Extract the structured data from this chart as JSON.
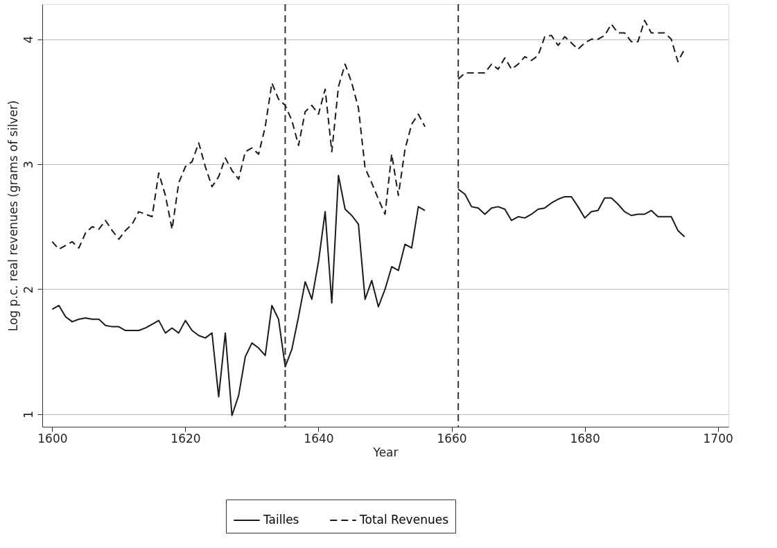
{
  "chart_data": {
    "type": "line",
    "xlabel": "Year",
    "ylabel": "Log p.c. real revenues (grams of silver)",
    "x": [
      1600,
      1601,
      1602,
      1603,
      1604,
      1605,
      1606,
      1607,
      1608,
      1609,
      1610,
      1611,
      1612,
      1613,
      1614,
      1615,
      1616,
      1617,
      1618,
      1619,
      1620,
      1621,
      1622,
      1623,
      1624,
      1625,
      1626,
      1627,
      1628,
      1629,
      1630,
      1631,
      1632,
      1633,
      1634,
      1635,
      1636,
      1637,
      1638,
      1639,
      1640,
      1641,
      1642,
      1643,
      1644,
      1645,
      1646,
      1647,
      1648,
      1649,
      1650,
      1651,
      1652,
      1653,
      1654,
      1655,
      1656,
      1657,
      1658,
      1659,
      1660,
      1661,
      1662,
      1663,
      1664,
      1665,
      1666,
      1667,
      1668,
      1669,
      1670,
      1671,
      1672,
      1673,
      1674,
      1675,
      1676,
      1677,
      1678,
      1679,
      1680,
      1681,
      1682,
      1683,
      1684,
      1685,
      1686,
      1687,
      1688,
      1689,
      1690,
      1691,
      1692,
      1693,
      1694,
      1695
    ],
    "series": [
      {
        "name": "Tailles",
        "color": "#1a1a1a",
        "line_style": "solid",
        "values": [
          1.84,
          1.87,
          1.78,
          1.74,
          1.76,
          1.77,
          1.76,
          1.76,
          1.71,
          1.7,
          1.7,
          1.67,
          1.67,
          1.67,
          1.69,
          1.72,
          1.75,
          1.65,
          1.69,
          1.65,
          1.75,
          1.67,
          1.63,
          1.61,
          1.65,
          1.14,
          1.65,
          0.99,
          1.15,
          1.46,
          1.57,
          1.53,
          1.47,
          1.87,
          1.76,
          1.38,
          1.52,
          1.78,
          2.06,
          1.92,
          2.22,
          2.62,
          1.89,
          2.91,
          2.64,
          2.59,
          2.52,
          1.92,
          2.07,
          1.86,
          2.0,
          2.18,
          2.15,
          2.36,
          2.33,
          2.66,
          2.63,
          null,
          null,
          null,
          null,
          2.8,
          2.76,
          2.66,
          2.65,
          2.6,
          2.65,
          2.66,
          2.64,
          2.55,
          2.58,
          2.57,
          2.6,
          2.64,
          2.65,
          2.69,
          2.72,
          2.74,
          2.74,
          2.66,
          2.57,
          2.62,
          2.63,
          2.73,
          2.73,
          2.68,
          2.62,
          2.59,
          2.6,
          2.6,
          2.63,
          2.58,
          2.58,
          2.58,
          2.47,
          2.42
        ]
      },
      {
        "name": "Total Revenues",
        "color": "#1a1a1a",
        "line_style": "dashed",
        "values": [
          2.38,
          2.32,
          2.35,
          2.38,
          2.33,
          2.45,
          2.5,
          2.48,
          2.55,
          2.47,
          2.4,
          2.47,
          2.52,
          2.62,
          2.6,
          2.58,
          2.93,
          2.75,
          2.48,
          2.85,
          2.98,
          3.02,
          3.17,
          2.98,
          2.82,
          2.9,
          3.05,
          2.95,
          2.88,
          3.1,
          3.13,
          3.08,
          3.3,
          3.65,
          3.52,
          3.47,
          3.35,
          3.15,
          3.42,
          3.47,
          3.4,
          3.6,
          3.1,
          3.62,
          3.8,
          3.65,
          3.45,
          2.97,
          2.85,
          2.72,
          2.6,
          3.08,
          2.75,
          3.12,
          3.32,
          3.4,
          3.3,
          null,
          null,
          null,
          null,
          3.68,
          3.73,
          3.73,
          3.73,
          3.73,
          3.8,
          3.76,
          3.85,
          3.76,
          3.8,
          3.86,
          3.83,
          3.87,
          4.02,
          4.03,
          3.95,
          4.02,
          3.97,
          3.92,
          3.97,
          4.0,
          4.0,
          4.03,
          4.12,
          4.05,
          4.05,
          3.98,
          3.98,
          4.15,
          4.05,
          4.05,
          4.05,
          4.0,
          3.82,
          3.92
        ]
      }
    ],
    "ref_lines": [
      {
        "axis": "x",
        "value": 1635,
        "label": null,
        "color": "#333333",
        "line_style": "dashed"
      },
      {
        "axis": "x",
        "value": 1661,
        "label": null,
        "color": "#333333",
        "line_style": "dashed"
      }
    ],
    "xlim": [
      1598.5,
      1701.6
    ],
    "xticks": [
      1600,
      1620,
      1640,
      1660,
      1680,
      1700
    ],
    "ylim": [
      0.9,
      4.28
    ],
    "yticks": [
      1,
      2,
      3,
      4
    ],
    "grid": "y",
    "legend": "bottom"
  }
}
